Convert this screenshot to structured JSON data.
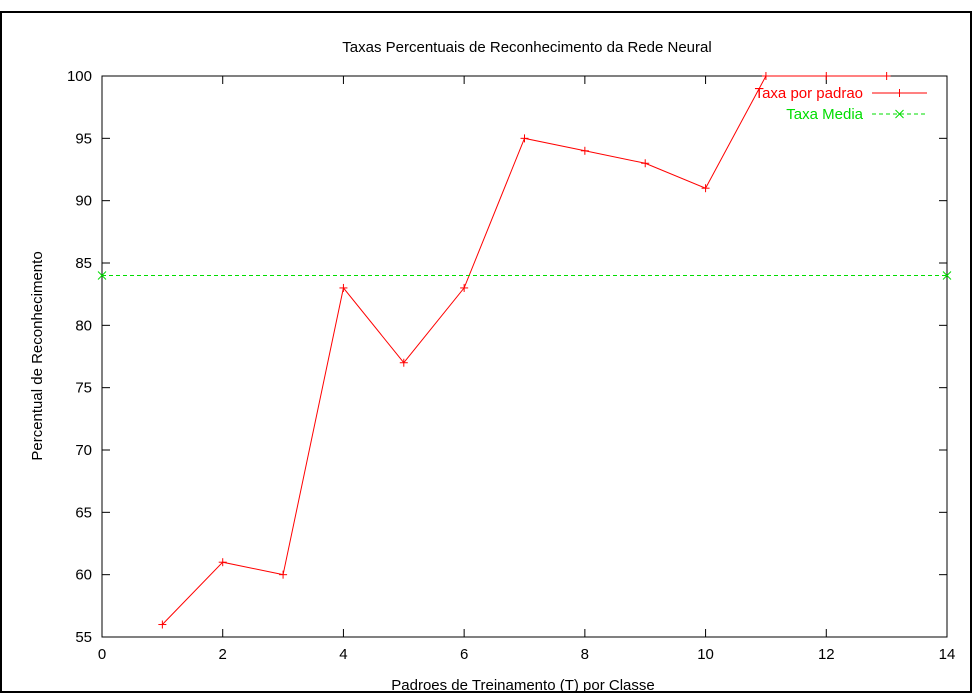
{
  "chart_data": {
    "type": "line",
    "title": "Taxas Percentuais de Reconhecimento da Rede Neural",
    "xlabel": "Padroes de Treinamento (T) por Classe",
    "ylabel": "Percentual de Reconhecimento",
    "xlim": [
      0,
      14
    ],
    "ylim": [
      55,
      100
    ],
    "xticks": [
      "0",
      "2",
      "4",
      "6",
      "8",
      "10",
      "12",
      "14"
    ],
    "yticks": [
      "55",
      "60",
      "65",
      "70",
      "75",
      "80",
      "85",
      "90",
      "95",
      "100"
    ],
    "grid": false,
    "legend_position": "top-right",
    "series": [
      {
        "name": "Taxa por padrao",
        "color": "#ff0000",
        "marker": "plus",
        "x": [
          1,
          2,
          3,
          4,
          5,
          6,
          7,
          8,
          9,
          10,
          11,
          12,
          13
        ],
        "y": [
          56,
          61,
          60,
          83,
          77,
          83,
          95,
          94,
          93,
          91,
          100,
          100,
          100
        ]
      },
      {
        "name": "Taxa Media",
        "color": "#00dd00",
        "marker": "cross",
        "dashed": true,
        "x": [
          0,
          14
        ],
        "y": [
          84,
          84
        ]
      }
    ]
  }
}
